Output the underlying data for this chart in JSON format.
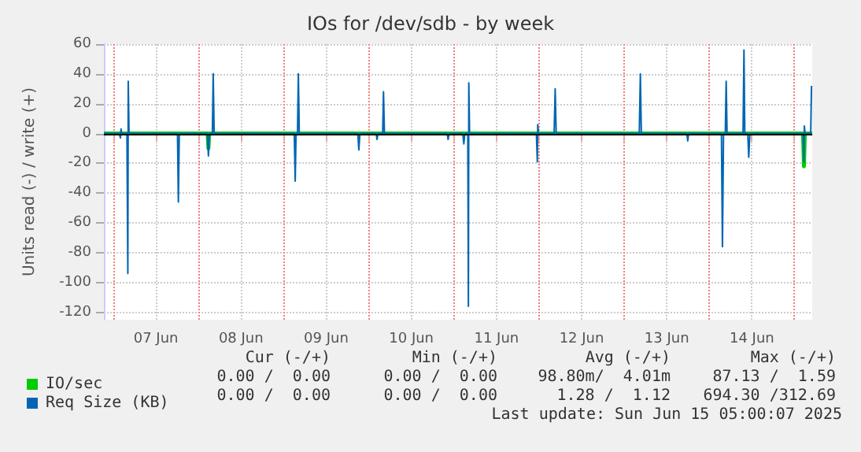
{
  "chart_data": {
    "type": "line",
    "title": "IOs for /dev/sdb - by week",
    "ylabel": "Units read (-) / write (+)",
    "xlim": [
      "2025-06-06T21:20",
      "2025-06-15T05:00"
    ],
    "xticks": [
      {
        "value": "2025-06-07T00:00",
        "label": null
      },
      {
        "value": "2025-06-07T12:00",
        "label": "07 Jun"
      },
      {
        "value": "2025-06-08T00:00",
        "label": null
      },
      {
        "value": "2025-06-08T12:00",
        "label": "08 Jun"
      },
      {
        "value": "2025-06-09T00:00",
        "label": null
      },
      {
        "value": "2025-06-09T12:00",
        "label": "09 Jun"
      },
      {
        "value": "2025-06-10T00:00",
        "label": null
      },
      {
        "value": "2025-06-10T12:00",
        "label": "10 Jun"
      },
      {
        "value": "2025-06-11T00:00",
        "label": null
      },
      {
        "value": "2025-06-11T12:00",
        "label": "11 Jun"
      },
      {
        "value": "2025-06-12T00:00",
        "label": null
      },
      {
        "value": "2025-06-12T12:00",
        "label": "12 Jun"
      },
      {
        "value": "2025-06-13T00:00",
        "label": null
      },
      {
        "value": "2025-06-13T12:00",
        "label": "13 Jun"
      },
      {
        "value": "2025-06-14T00:00",
        "label": null
      },
      {
        "value": "2025-06-14T12:00",
        "label": "14 Jun"
      },
      {
        "value": "2025-06-15T00:00",
        "label": null
      }
    ],
    "ylim": [
      -125,
      60
    ],
    "yticks": [
      -120,
      -100,
      -80,
      -60,
      -40,
      -20,
      0,
      20,
      40,
      60
    ],
    "grid": true,
    "legend": "bottom",
    "ref_lines": [
      {
        "axis": "y",
        "value": 0,
        "color": "#000000"
      }
    ],
    "series": [
      {
        "name": "IO/sec",
        "color": "#00cc00",
        "x": [
          "2025-06-06T21:20",
          "2025-06-08T02:35",
          "2025-06-08T02:48",
          "2025-06-08T03:00",
          "2025-06-15T02:25",
          "2025-06-15T02:40",
          "2025-06-15T02:55",
          "2025-06-15T05:00"
        ],
        "values": [
          0,
          0,
          -10,
          0,
          0,
          -22,
          0,
          0
        ]
      },
      {
        "name": "Req Size (KB)",
        "color": "#0066b3",
        "x": [
          "2025-06-06T21:20",
          "2025-06-07T01:40",
          "2025-06-07T02:00",
          "2025-06-07T02:10",
          "2025-06-07T02:20",
          "2025-06-07T03:50",
          "2025-06-07T04:05",
          "2025-06-07T04:12",
          "2025-06-07T04:25",
          "2025-06-07T18:05",
          "2025-06-07T18:20",
          "2025-06-07T18:35",
          "2025-06-08T02:30",
          "2025-06-08T02:48",
          "2025-06-08T03:05",
          "2025-06-08T03:55",
          "2025-06-08T04:09",
          "2025-06-08T04:25",
          "2025-06-09T03:00",
          "2025-06-09T03:16",
          "2025-06-09T03:30",
          "2025-06-09T03:55",
          "2025-06-09T04:09",
          "2025-06-09T04:25",
          "2025-06-09T20:55",
          "2025-06-09T21:12",
          "2025-06-09T21:30",
          "2025-06-10T02:05",
          "2025-06-10T02:20",
          "2025-06-10T02:35",
          "2025-06-10T03:55",
          "2025-06-10T04:09",
          "2025-06-10T04:25",
          "2025-06-10T22:05",
          "2025-06-10T22:22",
          "2025-06-10T22:40",
          "2025-06-11T02:30",
          "2025-06-11T02:48",
          "2025-06-11T03:05",
          "2025-06-11T03:55",
          "2025-06-11T04:05",
          "2025-06-11T04:12",
          "2025-06-11T04:25",
          "2025-06-11T23:15",
          "2025-06-11T23:31",
          "2025-06-11T23:38",
          "2025-06-11T23:50",
          "2025-06-12T04:15",
          "2025-06-12T04:33",
          "2025-06-12T04:50",
          "2025-06-13T04:15",
          "2025-06-13T04:34",
          "2025-06-13T04:50",
          "2025-06-13T17:40",
          "2025-06-13T17:55",
          "2025-06-13T18:10",
          "2025-06-14T03:25",
          "2025-06-14T03:42",
          "2025-06-14T04:00",
          "2025-06-14T04:30",
          "2025-06-14T04:45",
          "2025-06-14T05:00",
          "2025-06-14T09:30",
          "2025-06-14T09:46",
          "2025-06-14T10:00",
          "2025-06-14T10:50",
          "2025-06-14T11:07",
          "2025-06-14T11:25",
          "2025-06-15T02:25",
          "2025-06-15T02:40",
          "2025-06-15T02:47",
          "2025-06-15T03:00",
          "2025-06-15T04:35",
          "2025-06-15T04:48",
          "2025-06-15T05:00"
        ],
        "values": [
          0,
          0,
          -3,
          3,
          0,
          0,
          -94,
          35,
          0,
          0,
          -46,
          0,
          0,
          -15,
          0,
          0,
          40,
          0,
          0,
          -32,
          0,
          0,
          40,
          0,
          0,
          -11,
          0,
          0,
          -4,
          0,
          0,
          28,
          0,
          0,
          -4,
          0,
          0,
          -7,
          0,
          0,
          -116,
          34,
          0,
          0,
          -19,
          6,
          0,
          0,
          30,
          0,
          0,
          40,
          0,
          0,
          -5,
          0,
          0,
          -76,
          0,
          0,
          35,
          0,
          0,
          56,
          0,
          0,
          -16,
          0,
          0,
          -19,
          5,
          0,
          0,
          32,
          32
        ]
      }
    ],
    "annotations": [
      "Cur (-/+)",
      "Min (-/+)",
      "Avg (-/+)",
      "Max (-/+)",
      "0.00 /  0.00",
      "0.00 /  0.00",
      "98.80m/  4.01m",
      "87.13 /  1.59",
      "0.00 /  0.00",
      "0.00 /  0.00",
      "1.28 /  1.12",
      "694.30 /312.69",
      "Last update: Sun Jun 15 05:00:07 2025"
    ]
  }
}
